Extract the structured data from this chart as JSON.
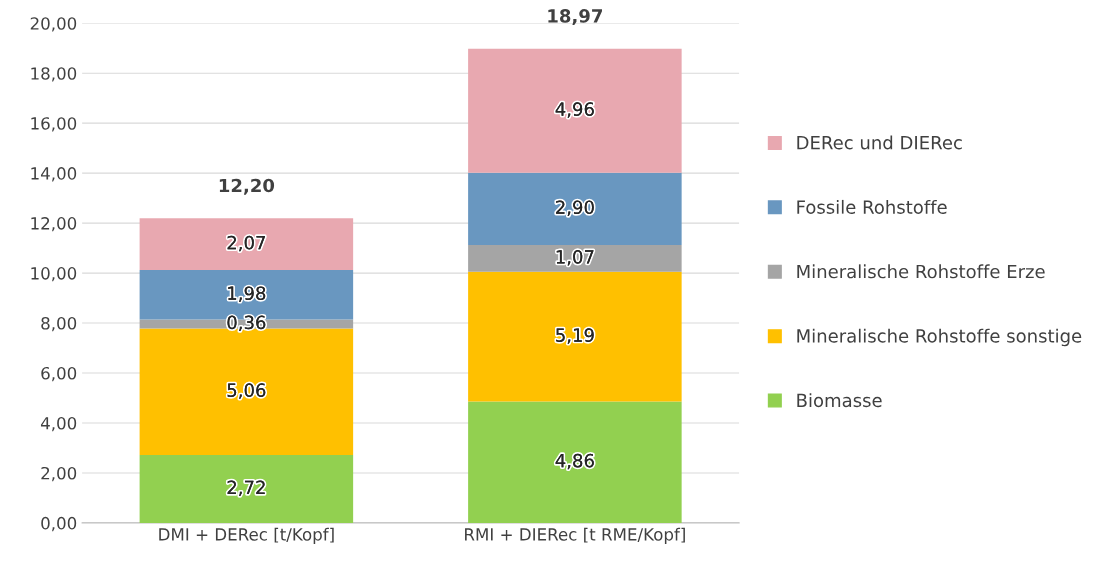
{
  "chart_data": {
    "type": "bar",
    "stacked": true,
    "categories": [
      "DMI + DERec [t/Kopf]",
      "RMI + DIERec [t RME/Kopf]"
    ],
    "series": [
      {
        "name": "Biomasse",
        "color": "#92d050",
        "values": [
          2.72,
          4.86
        ],
        "value_labels": [
          "2,72",
          "4,86"
        ]
      },
      {
        "name": "Mineralische Rohstoffe sonstige",
        "color": "#ffc000",
        "values": [
          5.06,
          5.19
        ],
        "value_labels": [
          "5,06",
          "5,19"
        ]
      },
      {
        "name": "Mineralische Rohstoffe Erze",
        "color": "#a5a5a5",
        "values": [
          0.36,
          1.07
        ],
        "value_labels": [
          "0,36",
          "1,07"
        ]
      },
      {
        "name": "Fossile Rohstoffe",
        "color": "#6997c0",
        "values": [
          1.98,
          2.9
        ],
        "value_labels": [
          "1,98",
          "2,90"
        ]
      },
      {
        "name": "DERec und DIERec",
        "color": "#e8a8b0",
        "values": [
          2.07,
          4.96
        ],
        "value_labels": [
          "2,07",
          "4,96"
        ]
      }
    ],
    "totals": [
      "12,20",
      "18,97"
    ],
    "ylim": [
      0,
      20
    ],
    "yticks": [
      {
        "value": 0,
        "label": "0,00"
      },
      {
        "value": 2,
        "label": "2,00"
      },
      {
        "value": 4,
        "label": "4,00"
      },
      {
        "value": 6,
        "label": "6,00"
      },
      {
        "value": 8,
        "label": "8,00"
      },
      {
        "value": 10,
        "label": "10,00"
      },
      {
        "value": 12,
        "label": "12,00"
      },
      {
        "value": 14,
        "label": "14,00"
      },
      {
        "value": 16,
        "label": "16,00"
      },
      {
        "value": 18,
        "label": "18,00"
      },
      {
        "value": 20,
        "label": "20,00"
      }
    ],
    "grid": "y",
    "legend": "right"
  }
}
